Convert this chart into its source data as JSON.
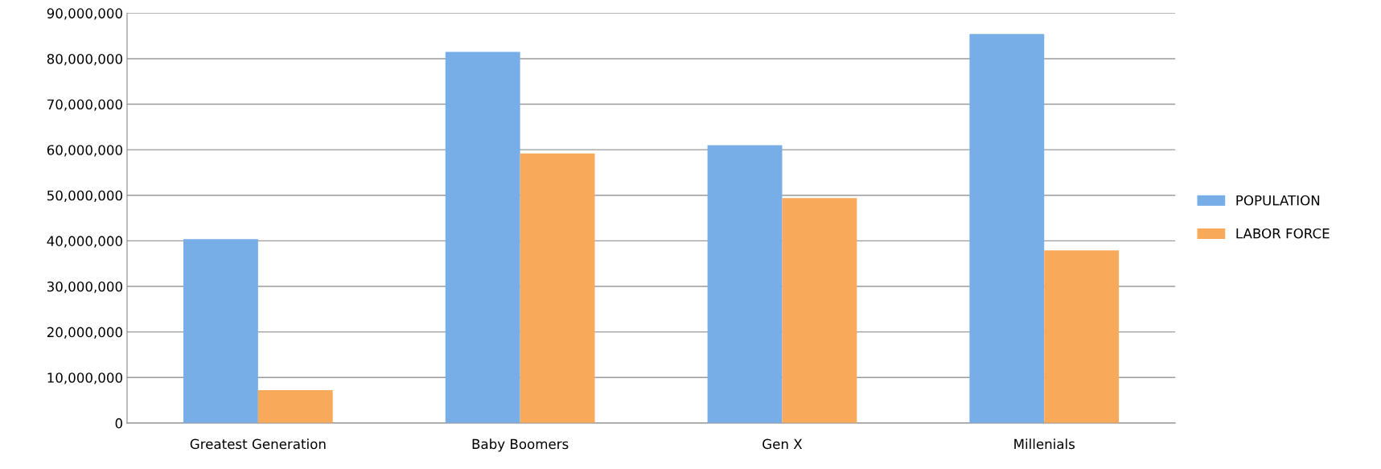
{
  "chart_data": {
    "type": "bar",
    "categories": [
      "Greatest Generation",
      "Baby Boomers",
      "Gen X",
      "Millenials"
    ],
    "series": [
      {
        "name": "POPULATION",
        "color": "#78aee8",
        "values": [
          40400000,
          81500000,
          61000000,
          85400000
        ]
      },
      {
        "name": "LABOR FORCE",
        "color": "#f8a95a",
        "values": [
          7200000,
          59200000,
          49400000,
          37900000
        ]
      }
    ],
    "ylim": [
      0,
      90000000
    ],
    "yticks": [
      {
        "value": 0,
        "label": "0"
      },
      {
        "value": 10000000,
        "label": "10,000,000"
      },
      {
        "value": 20000000,
        "label": "20,000,000"
      },
      {
        "value": 30000000,
        "label": "30,000,000"
      },
      {
        "value": 40000000,
        "label": "40,000,000"
      },
      {
        "value": 50000000,
        "label": "50,000,000"
      },
      {
        "value": 60000000,
        "label": "60,000,000"
      },
      {
        "value": 70000000,
        "label": "70,000,000"
      },
      {
        "value": 80000000,
        "label": "80,000,000"
      },
      {
        "value": 90000000,
        "label": "90,000,000"
      }
    ],
    "grid": "y",
    "legend": "right"
  }
}
